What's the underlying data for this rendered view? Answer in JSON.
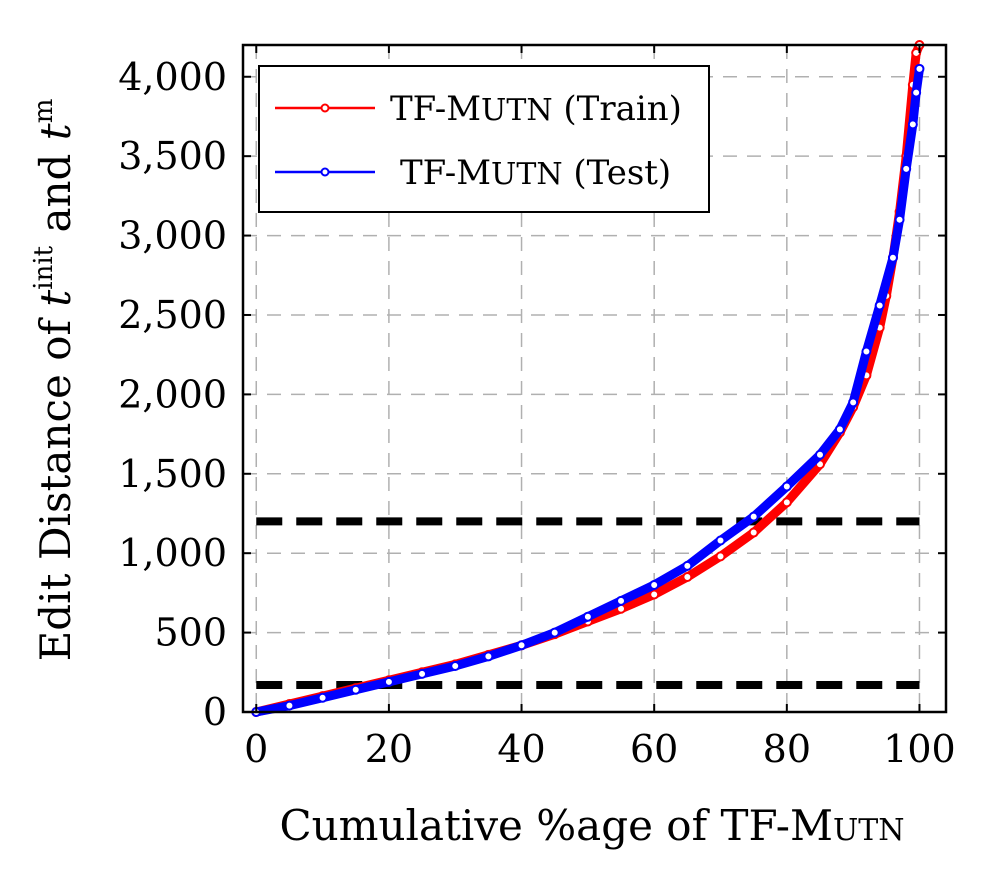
{
  "chart_data": {
    "type": "line",
    "xlabel": "Cumulative %age of TF-Mutn",
    "xlabel_parts": {
      "prefix": "Cumulative %age of TF-M",
      "smallcaps": "utn"
    },
    "ylabel_parts": {
      "prefix": "Edit Distance of",
      "var1": "t",
      "sup1": "init",
      "middle": "and",
      "var2": "t",
      "sup2": "m"
    },
    "xlim": [
      -2,
      104
    ],
    "ylim": [
      0,
      4200
    ],
    "x_ticks": [
      0,
      20,
      40,
      60,
      80,
      100
    ],
    "x_tick_labels": [
      "0",
      "20",
      "40",
      "60",
      "80",
      "100"
    ],
    "y_ticks": [
      0,
      500,
      1000,
      1500,
      2000,
      2500,
      3000,
      3500,
      4000
    ],
    "y_tick_labels": [
      "0",
      "500",
      "1,000",
      "1,500",
      "2,000",
      "2,500",
      "3,000",
      "3,500",
      "4,000"
    ],
    "grid": true,
    "legend_position": "top-left",
    "reference_lines": [
      {
        "y": 1200,
        "style": "dashed",
        "color": "#000000"
      },
      {
        "y": 170,
        "style": "dashed",
        "color": "#000000"
      }
    ],
    "series": [
      {
        "name": "TF-Mutn (Train)",
        "legend_prefix": "TF-M",
        "legend_smallcaps": "utn",
        "legend_suffix": " (Train)",
        "color": "#ff0000",
        "x": [
          0,
          5,
          10,
          15,
          20,
          25,
          30,
          35,
          40,
          45,
          50,
          55,
          60,
          65,
          70,
          75,
          80,
          85,
          88,
          90,
          92,
          94,
          95,
          96,
          97,
          98,
          99,
          99.5,
          100
        ],
        "y": [
          0,
          50,
          100,
          150,
          200,
          250,
          300,
          360,
          420,
          490,
          570,
          650,
          740,
          850,
          980,
          1130,
          1320,
          1560,
          1760,
          1920,
          2120,
          2420,
          2620,
          2860,
          3150,
          3500,
          3950,
          4150,
          4200
        ]
      },
      {
        "name": "TF-Mutn (Test)",
        "legend_prefix": "TF-M",
        "legend_smallcaps": "utn",
        "legend_suffix": " (Test)",
        "color": "#0000ff",
        "x": [
          0,
          5,
          10,
          15,
          20,
          25,
          30,
          35,
          40,
          45,
          50,
          55,
          60,
          65,
          70,
          75,
          80,
          85,
          88,
          90,
          92,
          94,
          96,
          97,
          98,
          99,
          99.5,
          100
        ],
        "y": [
          0,
          40,
          90,
          140,
          190,
          240,
          290,
          350,
          420,
          500,
          600,
          700,
          800,
          920,
          1080,
          1230,
          1420,
          1620,
          1780,
          1950,
          2270,
          2560,
          2860,
          3100,
          3420,
          3700,
          3900,
          4050
        ]
      }
    ]
  }
}
